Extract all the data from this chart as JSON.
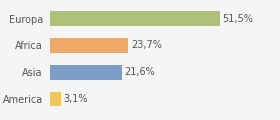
{
  "categories": [
    "America",
    "Asia",
    "Africa",
    "Europa"
  ],
  "values": [
    3.1,
    21.6,
    23.7,
    51.5
  ],
  "labels": [
    "3,1%",
    "21,6%",
    "23,7%",
    "51,5%"
  ],
  "bar_colors": [
    "#f0c75e",
    "#7b9dc7",
    "#f0a868",
    "#adc178"
  ],
  "background_color": "#f5f5f5",
  "xlim": [
    0,
    68
  ],
  "label_fontsize": 7,
  "tick_fontsize": 7
}
